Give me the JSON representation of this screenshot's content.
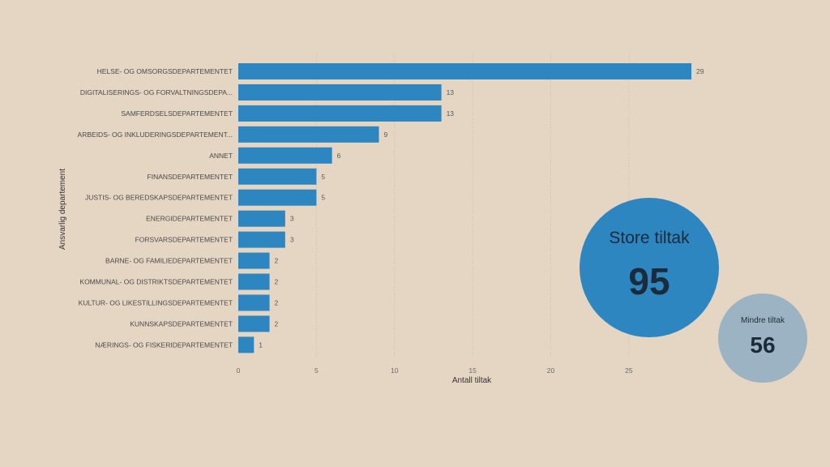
{
  "chart_data": {
    "type": "bar",
    "orientation": "horizontal",
    "categories": [
      "HELSE- OG OMSORGSDEPARTEMENTET",
      "DIGITALISERINGS- OG FORVALTNINGSDEPA...",
      "SAMFERDSELSDEPARTEMENTET",
      "ARBEIDS- OG INKLUDERINGSDEPARTEMENT...",
      "ANNET",
      "FINANSDEPARTEMENTET",
      "JUSTIS- OG BEREDSKAPSDEPARTEMENTET",
      "ENERGIDEPARTEMENTET",
      "FORSVARSDEPARTEMENTET",
      "BARNE- OG FAMILIEDEPARTEMENTET",
      "KOMMUNAL- OG DISTRIKTSDEPARTEMENTET",
      "KULTUR- OG LIKESTILLINGSDEPARTEMENTET",
      "KUNNSKAPSDEPARTEMENTET",
      "NÆRINGS- OG FISKERIDEPARTEMENTET"
    ],
    "values": [
      29,
      13,
      13,
      9,
      6,
      5,
      5,
      3,
      3,
      2,
      2,
      2,
      2,
      1
    ],
    "xlabel": "Antall tiltak",
    "ylabel": "Ansvarlig departement",
    "xlim": [
      0,
      29
    ],
    "xticks": [
      0,
      5,
      10,
      15,
      20,
      25
    ],
    "grid": true,
    "bar_color": "#2e86c1"
  },
  "kpis": {
    "store": {
      "label": "Store tiltak",
      "value": "95"
    },
    "mindre": {
      "label": "Mindre tiltak",
      "value": "56"
    }
  }
}
